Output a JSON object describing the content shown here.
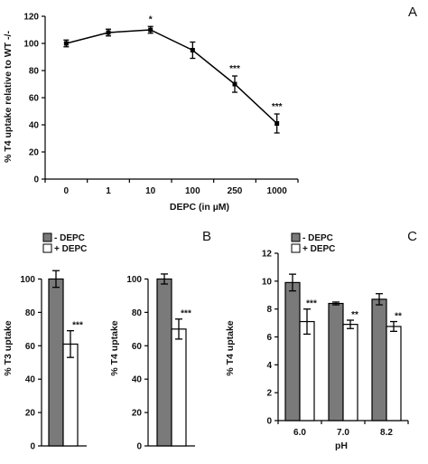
{
  "chart_data": [
    {
      "type": "line",
      "panel_label": "A",
      "xlabel": "DEPC (in µM)",
      "ylabel": "% T4 uptake relative to WT -/-",
      "categories": [
        "0",
        "1",
        "10",
        "100",
        "250",
        "1000"
      ],
      "values": [
        100,
        108,
        110,
        95,
        70,
        41
      ],
      "errors": [
        2.5,
        2.5,
        2.5,
        6,
        6,
        7
      ],
      "annotations": [
        "",
        "",
        "*",
        "",
        "***",
        "***"
      ],
      "ylim": [
        0,
        120
      ],
      "yticks": [
        "0",
        "20",
        "40",
        "60",
        "80",
        "100",
        "120"
      ],
      "color": "#000000"
    },
    {
      "type": "bar",
      "panel_label": "",
      "ylabel": "% T3 uptake",
      "series": [
        {
          "name": "- DEPC",
          "values": [
            100
          ],
          "errors": [
            5
          ]
        },
        {
          "name": "+ DEPC",
          "values": [
            61
          ],
          "errors": [
            8
          ]
        }
      ],
      "annotations": [
        "",
        "***"
      ],
      "ylim": [
        0,
        110
      ],
      "yticks": [
        "0",
        "20",
        "40",
        "60",
        "80",
        "100"
      ],
      "colors": [
        "#7a7a7a",
        "#ffffff"
      ],
      "legend_position": "top-left"
    },
    {
      "type": "bar",
      "panel_label": "B",
      "ylabel": "% T4 uptake",
      "series": [
        {
          "name": "- DEPC",
          "values": [
            100
          ],
          "errors": [
            3
          ]
        },
        {
          "name": "+ DEPC",
          "values": [
            70
          ],
          "errors": [
            6
          ]
        }
      ],
      "annotations": [
        "",
        "***"
      ],
      "ylim": [
        0,
        110
      ],
      "yticks": [
        "0",
        "20",
        "40",
        "60",
        "80",
        "100"
      ],
      "colors": [
        "#7a7a7a",
        "#ffffff"
      ]
    },
    {
      "type": "bar",
      "panel_label": "C",
      "ylabel": "% T4 uptake",
      "xlabel": "pH",
      "categories": [
        "6.0",
        "7.0",
        "8.2"
      ],
      "series": [
        {
          "name": "- DEPC",
          "values": [
            9.9,
            8.4,
            8.7
          ],
          "errors": [
            0.6,
            0.1,
            0.4
          ]
        },
        {
          "name": "+ DEPC",
          "values": [
            7.1,
            6.9,
            6.75
          ],
          "errors": [
            0.9,
            0.3,
            0.35
          ]
        }
      ],
      "annotations": [
        "***",
        "**",
        "**"
      ],
      "ylim": [
        0,
        12
      ],
      "yticks": [
        "0",
        "2",
        "4",
        "6",
        "8",
        "10",
        "12"
      ],
      "colors": [
        "#7a7a7a",
        "#ffffff"
      ],
      "legend_position": "top-left"
    }
  ]
}
